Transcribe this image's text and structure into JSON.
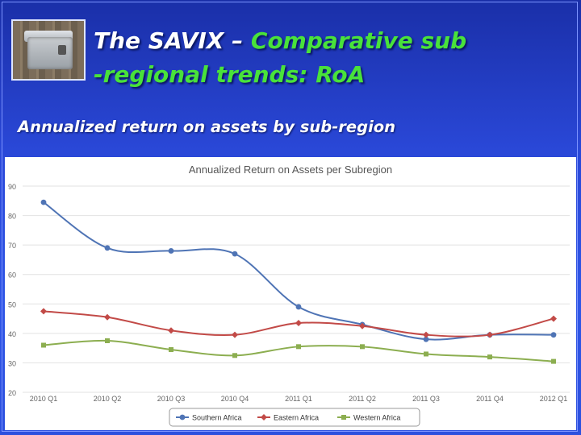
{
  "slide": {
    "title_part1": "The SAVIX – ",
    "title_part2": "Comparative sub",
    "title_line2": "-regional trends: RoA",
    "subtitle": "Annualized return on assets by sub-region",
    "highlight_color": "#49e23a"
  },
  "chart_data": {
    "type": "line",
    "title": "Annualized Return on Assets per Subregion",
    "categories": [
      "2010 Q1",
      "2010 Q2",
      "2010 Q3",
      "2010 Q4",
      "2011 Q1",
      "2011 Q2",
      "2011 Q3",
      "2011 Q4",
      "2012 Q1"
    ],
    "y_ticks": [
      "90",
      "80",
      "70",
      "60",
      "50",
      "40",
      "30",
      "20"
    ],
    "ylim": [
      20,
      90
    ],
    "grid": true,
    "legend_position": "bottom",
    "series": [
      {
        "name": "Southern Africa",
        "color": "#4f74b5",
        "marker": "circle",
        "values": [
          84.5,
          69,
          68,
          67,
          49,
          43,
          38,
          39.5,
          39.5
        ]
      },
      {
        "name": "Eastern Africa",
        "color": "#c24a47",
        "marker": "diamond",
        "values": [
          47.5,
          45.5,
          41,
          39.5,
          43.5,
          42.5,
          39.5,
          39.5,
          45
        ]
      },
      {
        "name": "Western Africa",
        "color": "#8cae50",
        "marker": "square",
        "values": [
          36,
          37.5,
          34.5,
          32.5,
          35.5,
          35.5,
          33,
          32,
          30.5
        ]
      }
    ]
  }
}
